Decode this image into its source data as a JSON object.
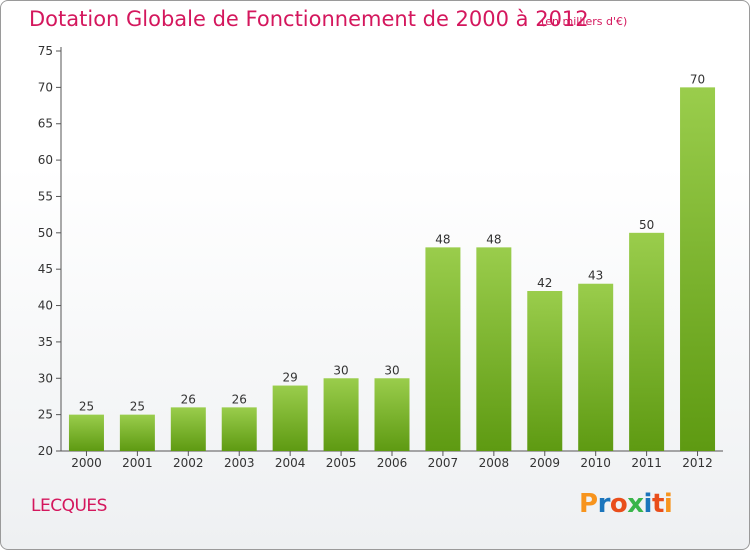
{
  "header": {
    "title": "Dotation Globale de Fonctionnement de 2000 à 2012",
    "subtitle": "(en milliers d'€)"
  },
  "footer": {
    "commune": "LECQUES",
    "logo_text": "Proxiti"
  },
  "colors": {
    "title": "#d4175d",
    "bar_top": "#9acd4c",
    "bar_bottom": "#5e9a12",
    "logo": [
      "#f7941d",
      "#1b75bc",
      "#e94e1b",
      "#39b54a",
      "#1b75bc",
      "#e94e1b",
      "#f7941d"
    ]
  },
  "chart_data": {
    "type": "bar",
    "title": "Dotation Globale de Fonctionnement de 2000 à 2012",
    "subtitle": "(en milliers d'€)",
    "categories": [
      "2000",
      "2001",
      "2002",
      "2003",
      "2004",
      "2005",
      "2006",
      "2007",
      "2008",
      "2009",
      "2010",
      "2011",
      "2012"
    ],
    "values": [
      25,
      25,
      26,
      26,
      29,
      30,
      30,
      48,
      48,
      42,
      43,
      50,
      70
    ],
    "ylim": [
      20,
      75
    ],
    "yticks": [
      20,
      25,
      30,
      35,
      40,
      45,
      50,
      55,
      60,
      65,
      70,
      75
    ],
    "grid": false,
    "data_labels": true
  }
}
